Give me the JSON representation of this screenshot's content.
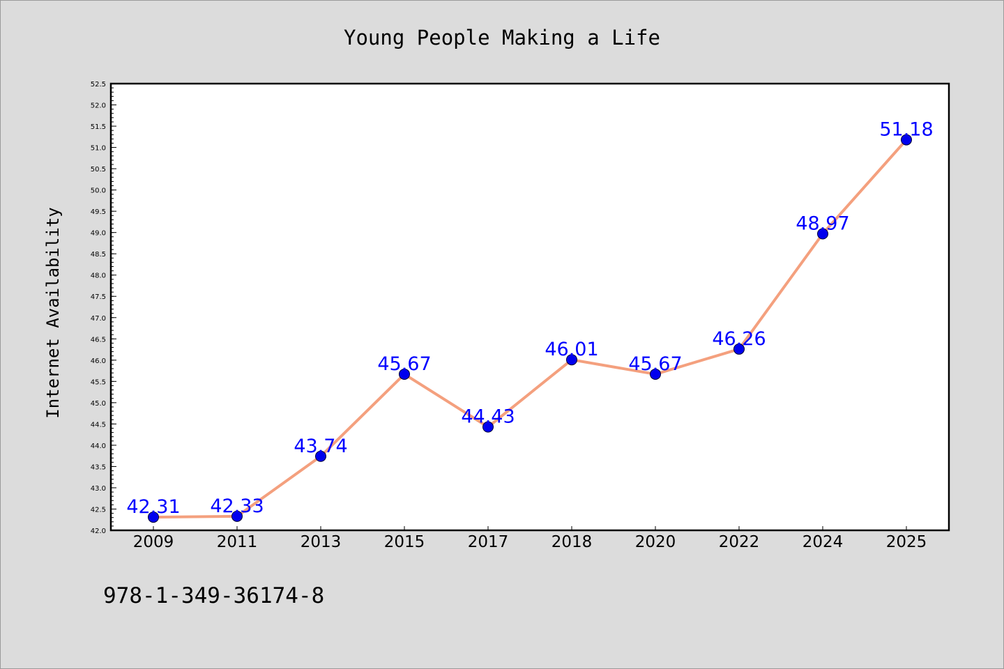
{
  "chart_data": {
    "type": "line",
    "title": "Young People Making a Life",
    "xlabel": "",
    "ylabel": "Internet Availability",
    "categories": [
      "2009",
      "2011",
      "2013",
      "2015",
      "2017",
      "2018",
      "2020",
      "2022",
      "2024",
      "2025"
    ],
    "series": [
      {
        "values": [
          42.31,
          42.33,
          43.74,
          45.67,
          44.43,
          46.01,
          45.67,
          46.26,
          48.97,
          51.18
        ],
        "data_labels": [
          "42.31",
          "42.33",
          "43.74",
          "45.67",
          "44.43",
          "46.01",
          "45.67",
          "46.26",
          "48.97",
          "51.18"
        ],
        "line_color": "#f4a07e",
        "marker_color": "#0000ee",
        "label_color": "#0000ff"
      }
    ],
    "ylim": [
      42.0,
      52.5
    ],
    "yticks": [
      "42.0",
      "42.5",
      "43.0",
      "43.5",
      "44.0",
      "44.5",
      "45.0",
      "45.5",
      "46.0",
      "46.5",
      "47.0",
      "47.5",
      "48.0",
      "48.5",
      "49.0",
      "49.5",
      "50.0",
      "50.5",
      "51.0",
      "51.5",
      "52.0",
      "52.5"
    ],
    "grid": false,
    "legend": "none",
    "background": "#dcdcdc",
    "plot_background": "#ffffff"
  },
  "footer": {
    "isbn": "978-1-349-36174-8"
  }
}
